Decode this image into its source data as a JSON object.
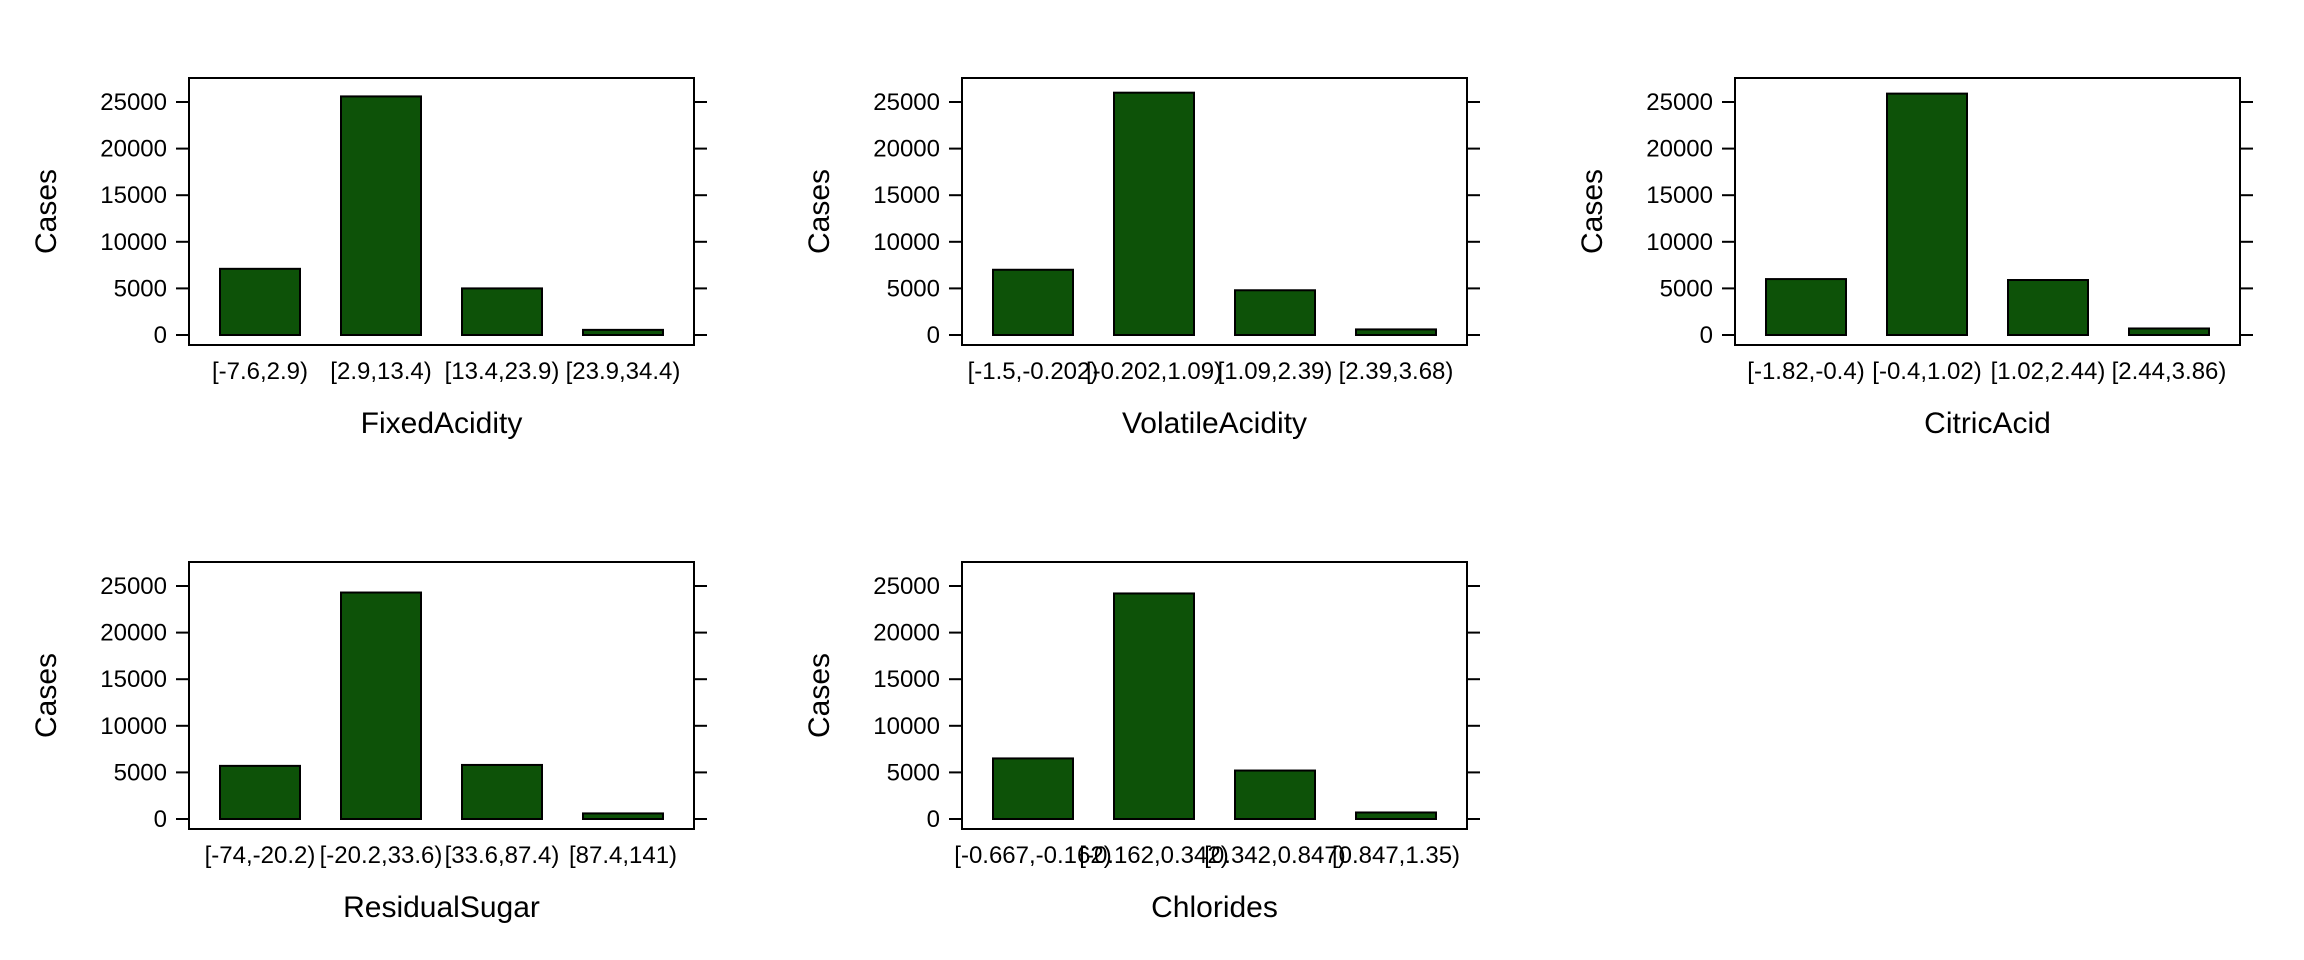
{
  "colors": {
    "bar_fill": "#0d5208",
    "bar_stroke": "#000000",
    "frame": "#000000",
    "background": "#ffffff"
  },
  "chart_data": [
    {
      "type": "bar",
      "xlabel": "FixedAcidity",
      "ylabel": "Cases",
      "categories": [
        "[-7.6,2.9)",
        "[2.9,13.4)",
        "[13.4,23.9)",
        "[23.9,34.4)"
      ],
      "values": [
        7100,
        25600,
        5000,
        550
      ],
      "yticks": [
        0,
        5000,
        10000,
        15000,
        20000,
        25000
      ],
      "ylim": [
        0,
        27000
      ],
      "grid": false,
      "legend": "none"
    },
    {
      "type": "bar",
      "xlabel": "VolatileAcidity",
      "ylabel": "Cases",
      "categories": [
        "[-1.5,-0.202)",
        "[-0.202,1.09)",
        "[1.09,2.39)",
        "[2.39,3.68)"
      ],
      "values": [
        7000,
        26000,
        4800,
        600
      ],
      "yticks": [
        0,
        5000,
        10000,
        15000,
        20000,
        25000
      ],
      "ylim": [
        0,
        27000
      ],
      "grid": false,
      "legend": "none"
    },
    {
      "type": "bar",
      "xlabel": "CitricAcid",
      "ylabel": "Cases",
      "categories": [
        "[-1.82,-0.4)",
        "[-0.4,1.02)",
        "[1.02,2.44)",
        "[2.44,3.86)"
      ],
      "values": [
        6000,
        25900,
        5900,
        700
      ],
      "yticks": [
        0,
        5000,
        10000,
        15000,
        20000,
        25000
      ],
      "ylim": [
        0,
        27000
      ],
      "grid": false,
      "legend": "none"
    },
    {
      "type": "bar",
      "xlabel": "ResidualSugar",
      "ylabel": "Cases",
      "categories": [
        "[-74,-20.2)",
        "[-20.2,33.6)",
        "[33.6,87.4)",
        "[87.4,141)"
      ],
      "values": [
        5700,
        24300,
        5800,
        600
      ],
      "yticks": [
        0,
        5000,
        10000,
        15000,
        20000,
        25000
      ],
      "ylim": [
        0,
        27000
      ],
      "grid": false,
      "legend": "none"
    },
    {
      "type": "bar",
      "xlabel": "Chlorides",
      "ylabel": "Cases",
      "categories": [
        "[-0.667,-0.162)",
        "[-0.162,0.342)",
        "[0.342,0.847)",
        "[0.847,1.35)"
      ],
      "values": [
        6500,
        24200,
        5200,
        700
      ],
      "yticks": [
        0,
        5000,
        10000,
        15000,
        20000,
        25000
      ],
      "ylim": [
        0,
        27000
      ],
      "grid": false,
      "legend": "none"
    }
  ]
}
